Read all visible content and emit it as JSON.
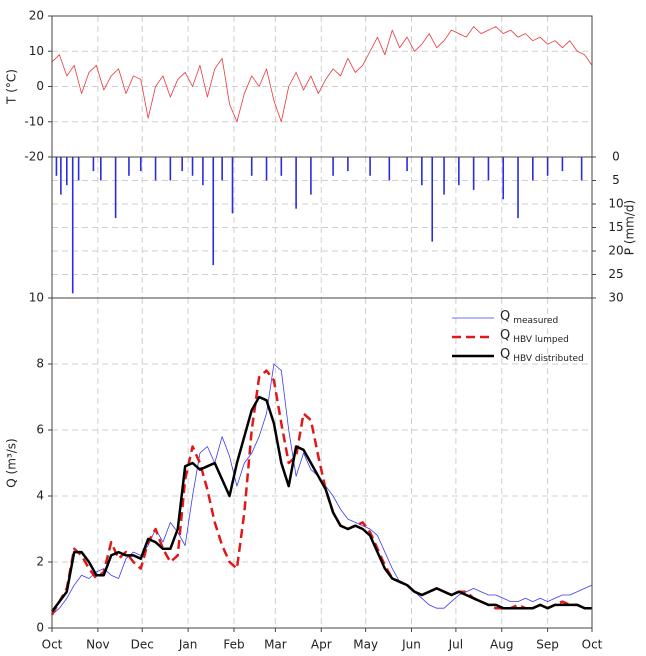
{
  "chart_data": [
    {
      "type": "line",
      "ylabel": "T (°C)",
      "color": "#e8383d",
      "xlim": [
        0,
        365
      ],
      "ylim": [
        -20,
        20
      ],
      "yticks": [
        -20,
        -10,
        0,
        10,
        20
      ],
      "grid": true,
      "x": [
        0,
        5,
        10,
        15,
        20,
        25,
        30,
        35,
        40,
        45,
        50,
        55,
        60,
        65,
        70,
        75,
        80,
        85,
        90,
        95,
        100,
        105,
        110,
        115,
        120,
        125,
        130,
        135,
        140,
        145,
        150,
        155,
        160,
        165,
        170,
        175,
        180,
        185,
        190,
        195,
        200,
        205,
        210,
        215,
        220,
        225,
        230,
        235,
        240,
        245,
        250,
        255,
        260,
        265,
        270,
        275,
        280,
        285,
        290,
        295,
        300,
        305,
        310,
        315,
        320,
        325,
        330,
        335,
        340,
        345,
        350,
        355,
        360,
        365
      ],
      "values": [
        7,
        9,
        3,
        6,
        -2,
        4,
        6,
        -1,
        3,
        5,
        -2,
        3,
        2,
        -9,
        0,
        3,
        -3,
        2,
        4,
        0,
        6,
        -3,
        5,
        8,
        -5,
        -10,
        -2,
        3,
        0,
        5,
        -4,
        -10,
        0,
        4,
        -1,
        3,
        -2,
        2,
        5,
        3,
        8,
        4,
        6,
        10,
        14,
        9,
        16,
        11,
        14,
        10,
        12,
        15,
        11,
        13,
        16,
        15,
        14,
        17,
        15,
        16,
        17,
        15,
        16,
        14,
        15,
        13,
        14,
        12,
        13,
        11,
        13,
        10,
        9,
        6
      ]
    },
    {
      "type": "bar",
      "ylabel": "P (mm/d)",
      "color": "#2b2be0",
      "inverted": true,
      "axis_side": "right",
      "xlim": [
        0,
        365
      ],
      "ylim": [
        0,
        30
      ],
      "yticks": [
        0,
        5,
        10,
        15,
        20,
        25,
        30
      ],
      "grid": true,
      "x": [
        3,
        6,
        10,
        14,
        18,
        28,
        33,
        43,
        52,
        60,
        70,
        80,
        88,
        95,
        102,
        109,
        115,
        122,
        135,
        145,
        155,
        165,
        175,
        190,
        200,
        215,
        228,
        240,
        250,
        257,
        265,
        275,
        285,
        295,
        305,
        315,
        325,
        335,
        345,
        358
      ],
      "values": [
        4,
        8,
        6,
        29,
        5,
        3,
        5,
        13,
        4,
        3,
        5,
        5,
        3,
        4,
        6,
        23,
        5,
        12,
        4,
        5,
        4,
        11,
        8,
        4,
        3,
        4,
        5,
        3,
        6,
        18,
        8,
        6,
        7,
        5,
        9,
        13,
        5,
        4,
        3,
        5
      ]
    },
    {
      "type": "line",
      "ylabel": "Q (m³/s)",
      "legend": "top-right",
      "xlim": [
        0,
        365
      ],
      "ylim": [
        0,
        10
      ],
      "yticks": [
        0,
        2,
        4,
        6,
        8,
        10
      ],
      "grid": true,
      "xticks": [
        {
          "value": 0,
          "label": "Oct"
        },
        {
          "value": 31,
          "label": "Nov"
        },
        {
          "value": 61,
          "label": "Dec"
        },
        {
          "value": 92,
          "label": "Jan"
        },
        {
          "value": 123,
          "label": "Feb"
        },
        {
          "value": 151,
          "label": "Mar"
        },
        {
          "value": 182,
          "label": "Apr"
        },
        {
          "value": 212,
          "label": "May"
        },
        {
          "value": 243,
          "label": "Jun"
        },
        {
          "value": 273,
          "label": "Jul"
        },
        {
          "value": 304,
          "label": "Aug"
        },
        {
          "value": 335,
          "label": "Sep"
        },
        {
          "value": 365,
          "label": "Oct"
        }
      ],
      "x": [
        0,
        5,
        10,
        15,
        20,
        25,
        30,
        35,
        40,
        45,
        50,
        55,
        60,
        65,
        70,
        75,
        80,
        85,
        90,
        95,
        100,
        105,
        110,
        115,
        120,
        125,
        130,
        135,
        140,
        145,
        150,
        155,
        160,
        165,
        170,
        175,
        180,
        185,
        190,
        195,
        200,
        205,
        210,
        215,
        220,
        225,
        230,
        235,
        240,
        245,
        250,
        255,
        260,
        265,
        270,
        275,
        280,
        285,
        290,
        295,
        300,
        305,
        310,
        315,
        320,
        325,
        330,
        335,
        340,
        345,
        350,
        355,
        360,
        365
      ],
      "series": [
        {
          "name": "Q",
          "subscript": "measured",
          "color": "#3b3bf5",
          "dash": "solid",
          "width": 0.8,
          "values": [
            0.4,
            0.6,
            0.9,
            1.3,
            1.6,
            1.5,
            1.7,
            1.8,
            1.6,
            1.5,
            2.1,
            2.3,
            2.2,
            2.5,
            3.0,
            2.6,
            3.2,
            2.9,
            2.5,
            4.0,
            5.3,
            5.5,
            5.0,
            5.8,
            5.2,
            4.3,
            5.0,
            5.3,
            5.8,
            6.5,
            8.0,
            7.8,
            6.0,
            4.6,
            5.3,
            4.8,
            4.6,
            4.3,
            4.0,
            3.6,
            3.3,
            3.2,
            3.1,
            3.0,
            2.8,
            2.3,
            1.8,
            1.4,
            1.3,
            1.1,
            0.9,
            0.7,
            0.6,
            0.6,
            0.8,
            1.0,
            1.1,
            1.2,
            1.1,
            1.0,
            1.0,
            0.9,
            0.8,
            0.8,
            0.9,
            0.8,
            0.9,
            0.8,
            0.9,
            1.0,
            1.0,
            1.1,
            1.2,
            1.3
          ]
        },
        {
          "name": "Q",
          "subscript": "HBV lumped",
          "color": "#e01818",
          "dash": "dashed",
          "width": 2.5,
          "values": [
            0.4,
            0.8,
            1.2,
            2.4,
            2.2,
            1.8,
            1.5,
            1.7,
            2.6,
            2.1,
            2.3,
            2.0,
            1.8,
            2.6,
            3.0,
            2.4,
            2.0,
            2.2,
            4.5,
            5.5,
            5.0,
            4.2,
            3.2,
            2.5,
            2.0,
            1.8,
            3.5,
            6.0,
            7.6,
            7.8,
            7.5,
            6.2,
            5.0,
            5.2,
            6.5,
            6.3,
            5.2,
            4.2,
            3.5,
            3.1,
            3.0,
            3.1,
            3.2,
            2.9,
            2.4,
            1.9,
            1.5,
            1.4,
            1.3,
            1.1,
            1.0,
            1.1,
            1.2,
            1.1,
            1.0,
            1.1,
            1.1,
            0.9,
            0.8,
            0.7,
            0.6,
            0.6,
            0.6,
            0.7,
            0.6,
            0.6,
            0.7,
            0.6,
            0.7,
            0.8,
            0.7,
            0.7,
            0.6,
            0.6
          ]
        },
        {
          "name": "Q",
          "subscript": "HBV distributed",
          "color": "#000000",
          "dash": "solid",
          "width": 2.5,
          "values": [
            0.5,
            0.8,
            1.1,
            2.3,
            2.3,
            2.0,
            1.6,
            1.6,
            2.2,
            2.3,
            2.2,
            2.2,
            2.1,
            2.7,
            2.6,
            2.4,
            2.4,
            3.0,
            4.9,
            5.0,
            4.8,
            4.9,
            5.0,
            4.5,
            4.0,
            5.0,
            5.8,
            6.6,
            7.0,
            6.9,
            6.2,
            5.0,
            4.3,
            5.5,
            5.4,
            5.0,
            4.6,
            4.2,
            3.5,
            3.1,
            3.0,
            3.1,
            3.0,
            2.8,
            2.3,
            1.8,
            1.5,
            1.4,
            1.3,
            1.1,
            1.0,
            1.1,
            1.2,
            1.1,
            1.0,
            1.1,
            1.0,
            0.9,
            0.8,
            0.7,
            0.7,
            0.6,
            0.6,
            0.6,
            0.6,
            0.6,
            0.7,
            0.6,
            0.7,
            0.7,
            0.7,
            0.7,
            0.6,
            0.6
          ]
        }
      ]
    }
  ]
}
